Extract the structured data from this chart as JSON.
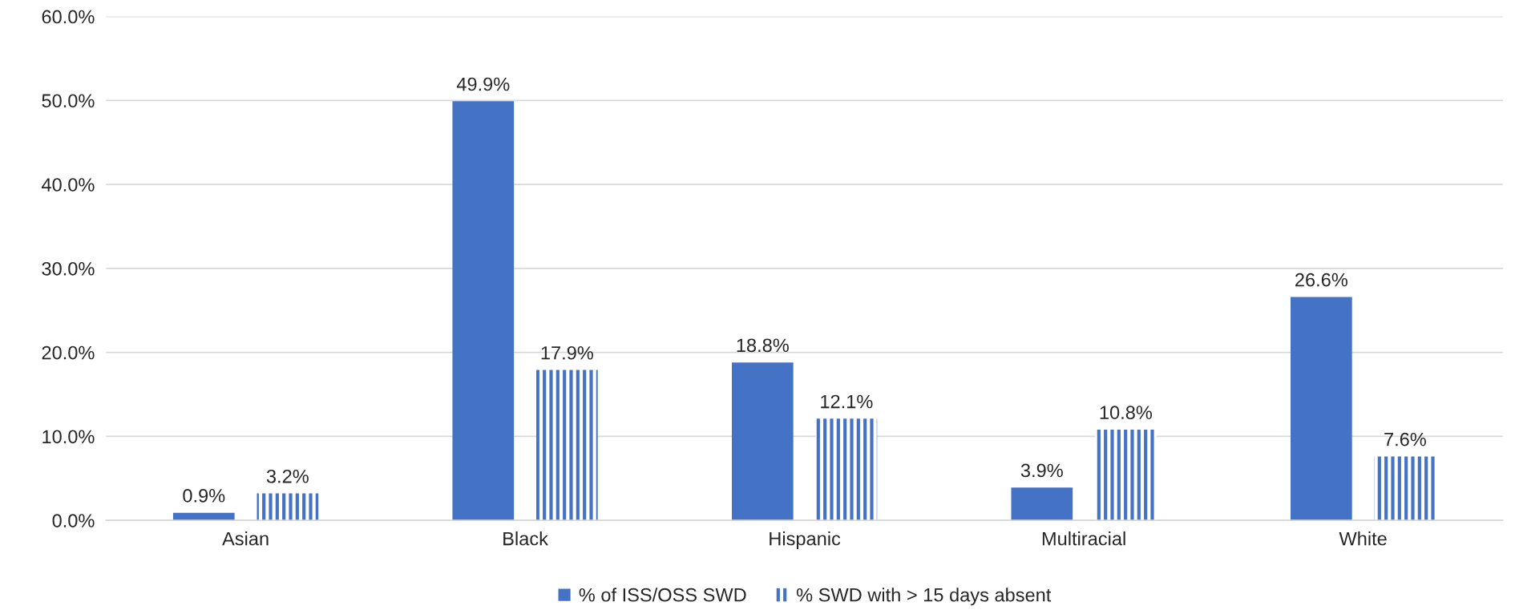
{
  "chart_data": {
    "type": "bar",
    "categories": [
      "Asian",
      "Black",
      "Hispanic",
      "Multiracial",
      "White"
    ],
    "series": [
      {
        "name": "% of ISS/OSS SWD",
        "color": "#4472c4",
        "values": [
          0.9,
          49.9,
          18.8,
          3.9,
          26.6
        ],
        "value_labels": [
          "0.9%",
          "49.9%",
          "18.8%",
          "3.9%",
          "26.6%"
        ]
      },
      {
        "name": "% SWD with > 15 days absent",
        "color": "#4472c4",
        "values": [
          3.2,
          17.9,
          12.1,
          10.8,
          7.6
        ],
        "value_labels": [
          "3.2%",
          "17.9%",
          "12.1%",
          "10.8%",
          "7.6%"
        ]
      }
    ],
    "ylim": [
      0,
      60
    ],
    "yticks": [
      {
        "value": 0,
        "label": "0.0%"
      },
      {
        "value": 10,
        "label": "10.0%"
      },
      {
        "value": 20,
        "label": "20.0%"
      },
      {
        "value": 30,
        "label": "30.0%"
      },
      {
        "value": 40,
        "label": "40.0%"
      },
      {
        "value": 50,
        "label": "50.0%"
      },
      {
        "value": 60,
        "label": "60.0%"
      }
    ],
    "grid": "y",
    "legend": "bottom"
  }
}
